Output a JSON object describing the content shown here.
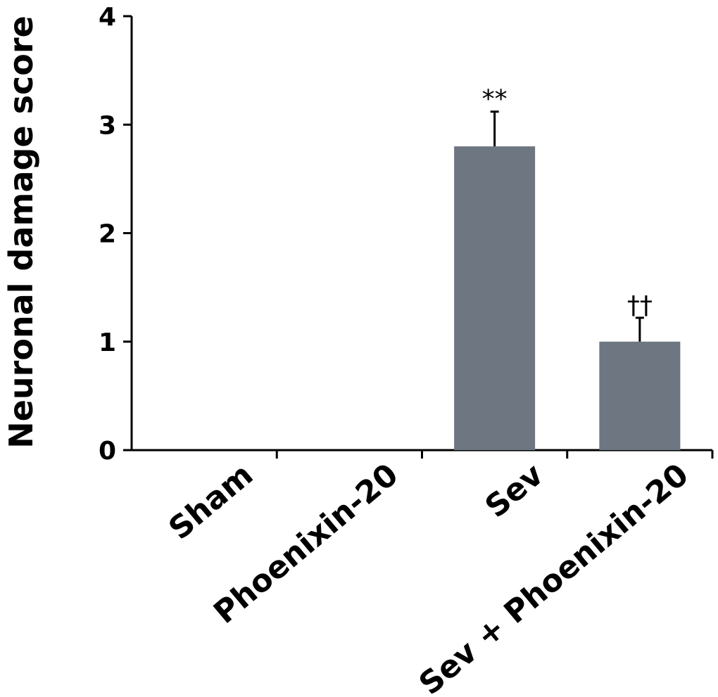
{
  "chart_data": {
    "type": "bar",
    "categories": [
      "Sham",
      "Phoenixin-20",
      "Sev",
      "Sev + Phoenixin-20"
    ],
    "values": [
      0,
      0,
      2.8,
      1.0
    ],
    "errors": [
      0,
      0,
      0.32,
      0.22
    ],
    "annotations": [
      "",
      "",
      "**",
      "††"
    ],
    "xlabel": "",
    "ylabel": "Neuronal damage score",
    "ylim": [
      0,
      4
    ],
    "yticks": [
      "0",
      "1",
      "2",
      "3",
      "4"
    ],
    "bar_color": "#6e7681",
    "grid": false,
    "legend": "none"
  }
}
